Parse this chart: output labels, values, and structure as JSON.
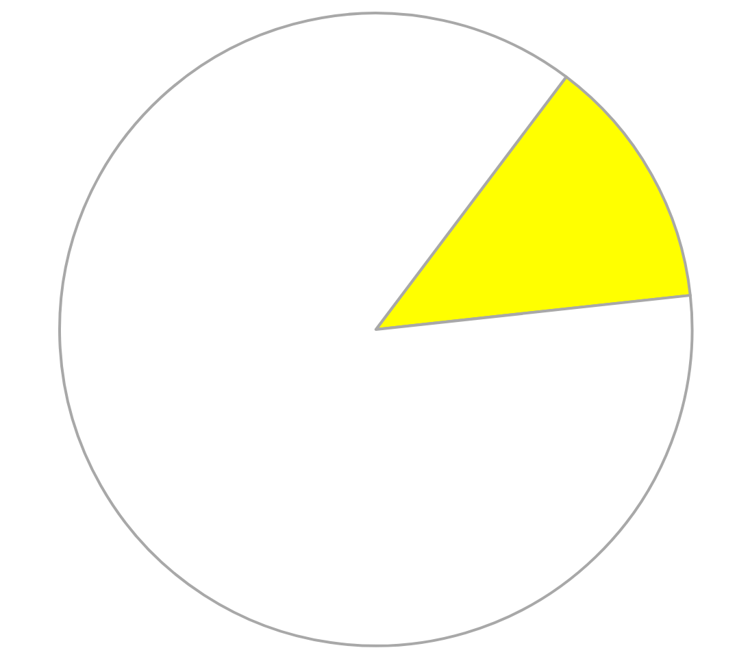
{
  "chart_data": {
    "type": "pie",
    "categories": [
      null,
      null
    ],
    "values": [
      13,
      87
    ],
    "colors": [
      "#ffff00",
      "#ffffff"
    ]
  }
}
